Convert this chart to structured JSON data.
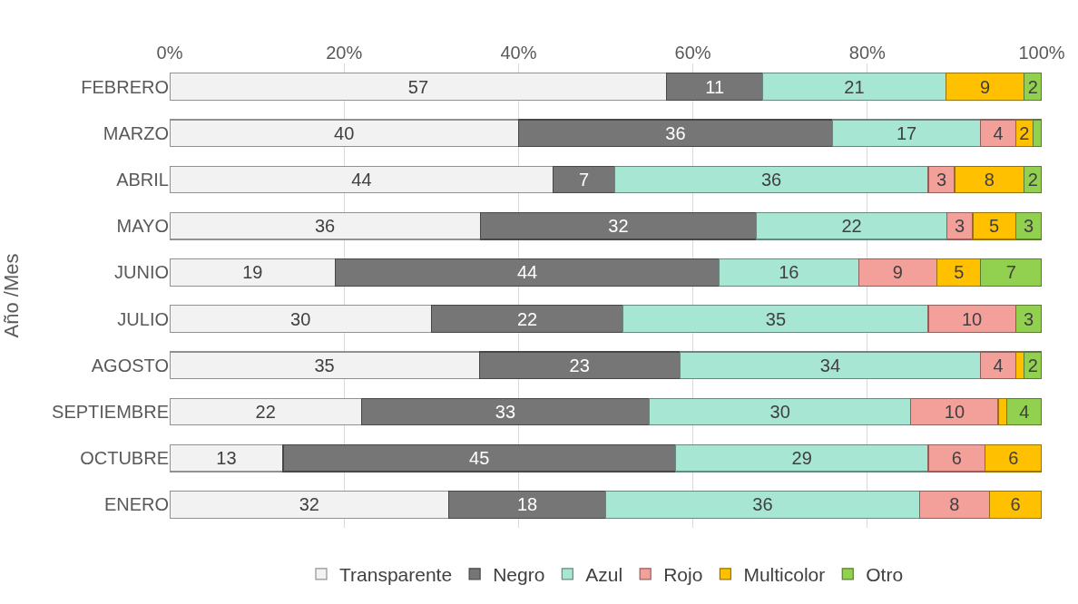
{
  "chart_data": {
    "type": "bar",
    "orientation": "horizontal",
    "stacked": true,
    "ylabel": "Año /Mes",
    "categories": [
      "FEBRERO",
      "MARZO",
      "ABRIL",
      "MAYO",
      "JUNIO",
      "JULIO",
      "AGOSTO",
      "SEPTIEMBRE",
      "OCTUBRE",
      "ENERO"
    ],
    "series": [
      {
        "name": "Transparente",
        "color": "#f2f2f2",
        "values": [
          57,
          40,
          44,
          35.6,
          19,
          30,
          35.5,
          22,
          13,
          32
        ],
        "value_labels": [
          "57",
          "40",
          "44",
          "36",
          "19",
          "30",
          "35",
          "22",
          "13",
          "32"
        ]
      },
      {
        "name": "Negro",
        "color": "#767676",
        "values": [
          11,
          36,
          7,
          31.7,
          44,
          22,
          23,
          33,
          45,
          18
        ],
        "value_labels": [
          "11",
          "36",
          "7",
          "32",
          "44",
          "22",
          "23",
          "33",
          "45",
          "18"
        ]
      },
      {
        "name": "Azul",
        "color": "#a8e6d4",
        "values": [
          21,
          17,
          36,
          21.8,
          16,
          35,
          34.5,
          30,
          29,
          36
        ],
        "value_labels": [
          "21",
          "17",
          "36",
          "22",
          "16",
          "35",
          "34",
          "30",
          "29",
          "36"
        ]
      },
      {
        "name": "Rojo",
        "color": "#f4a09a",
        "values": [
          null,
          4,
          3,
          3,
          9,
          10,
          4,
          10,
          6.5,
          8
        ],
        "value_labels": [
          null,
          "4",
          "3",
          "3",
          "9",
          "10",
          "4",
          "10",
          "6",
          "8"
        ]
      },
      {
        "name": "Multicolor",
        "color": "#ffc000",
        "values": [
          9,
          2,
          8,
          4.9,
          5,
          null,
          1,
          1,
          6.5,
          6
        ],
        "value_labels": [
          "9",
          "2",
          "8",
          "5",
          "5",
          null,
          null,
          null,
          "6",
          "6"
        ]
      },
      {
        "name": "Otro",
        "color": "#92d050",
        "values": [
          2,
          1,
          2,
          3,
          7,
          3,
          2,
          4,
          null,
          null
        ],
        "value_labels": [
          "2",
          null,
          "2",
          "3",
          "7",
          "3",
          "2",
          "4",
          null,
          null
        ]
      }
    ],
    "xlim": [
      0,
      100
    ],
    "xticks": [
      {
        "value": 0,
        "label": "0%"
      },
      {
        "value": 20,
        "label": "20%"
      },
      {
        "value": 40,
        "label": "40%"
      },
      {
        "value": 60,
        "label": "60%"
      },
      {
        "value": 80,
        "label": "80%"
      },
      {
        "value": 100,
        "label": "100%"
      }
    ],
    "grid": "x",
    "legend": "bottom"
  }
}
